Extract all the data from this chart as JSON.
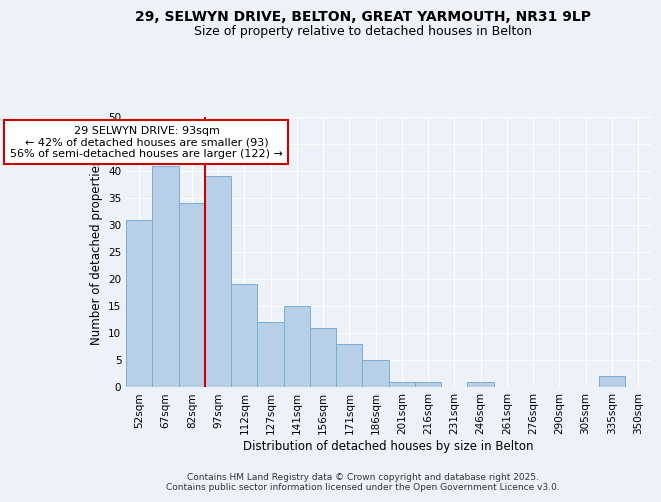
{
  "title_line1": "29, SELWYN DRIVE, BELTON, GREAT YARMOUTH, NR31 9LP",
  "title_line2": "Size of property relative to detached houses in Belton",
  "xlabel": "Distribution of detached houses by size in Belton",
  "ylabel": "Number of detached properties",
  "categories": [
    "52sqm",
    "67sqm",
    "82sqm",
    "97sqm",
    "112sqm",
    "127sqm",
    "141sqm",
    "156sqm",
    "171sqm",
    "186sqm",
    "201sqm",
    "216sqm",
    "231sqm",
    "246sqm",
    "261sqm",
    "276sqm",
    "290sqm",
    "305sqm",
    "335sqm",
    "350sqm"
  ],
  "values": [
    31,
    41,
    34,
    39,
    19,
    12,
    15,
    11,
    8,
    5,
    1,
    1,
    0,
    1,
    0,
    0,
    0,
    0,
    2,
    0
  ],
  "bar_color": "#b8cfe8",
  "bar_edge_color": "#7aadd4",
  "vline_x": 2.5,
  "vline_color": "#cc0000",
  "annotation_text": "29 SELWYN DRIVE: 93sqm\n← 42% of detached houses are smaller (93)\n56% of semi-detached houses are larger (122) →",
  "annotation_box_color": "#ffffff",
  "annotation_box_edge": "#cc0000",
  "ylim": [
    0,
    50
  ],
  "yticks": [
    0,
    5,
    10,
    15,
    20,
    25,
    30,
    35,
    40,
    45,
    50
  ],
  "footer_text": "Contains HM Land Registry data © Crown copyright and database right 2025.\nContains public sector information licensed under the Open Government Licence v3.0.",
  "bg_color": "#edf2f9",
  "grid_color": "#ffffff",
  "title_fontsize": 10,
  "subtitle_fontsize": 9,
  "axis_label_fontsize": 8.5,
  "tick_fontsize": 7.5,
  "annotation_fontsize": 8,
  "footer_fontsize": 6.5
}
